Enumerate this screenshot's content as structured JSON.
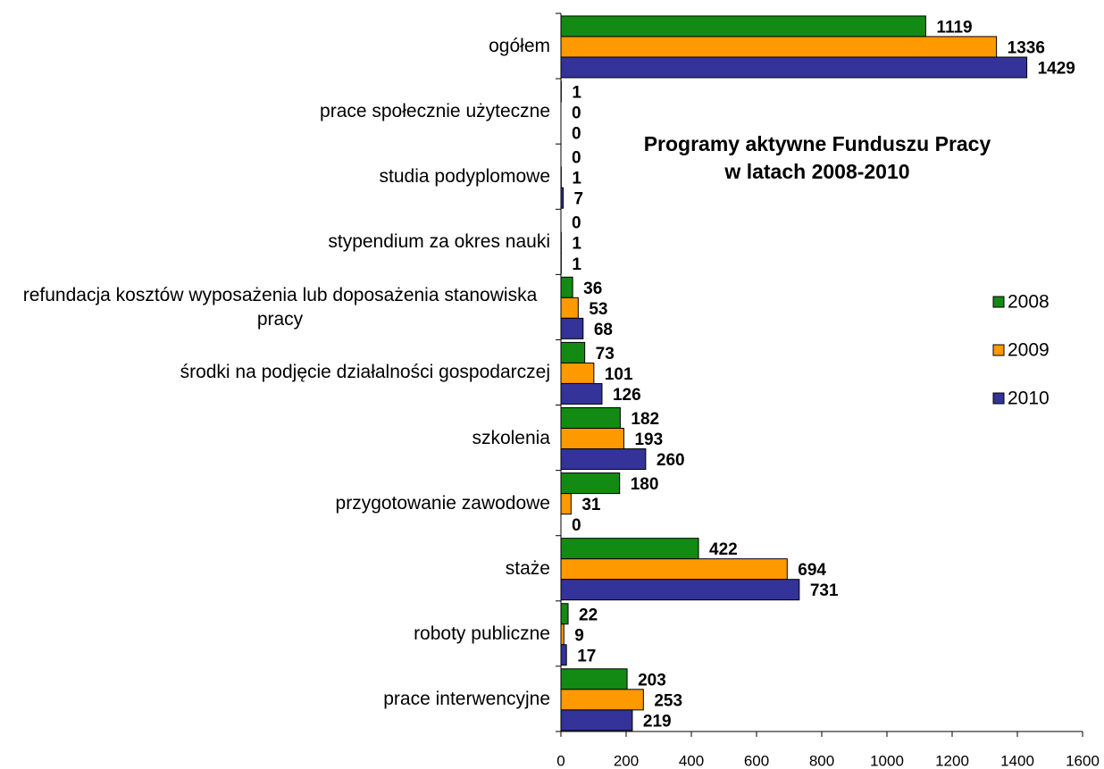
{
  "chart_data": {
    "type": "hbar",
    "title": [
      "Programy aktywne Funduszu Pracy",
      "w latach 2008-2010"
    ],
    "categories": [
      "ogółem",
      "prace społecznie użyteczne",
      "studia podyplomowe",
      "stypendium za okres nauki",
      "refundacja kosztów wyposażenia lub doposażenia stanowiska pracy",
      "środki na podjęcie działalności gospodarczej",
      "szkolenia",
      "przygotowanie zawodowe",
      "staże",
      "roboty publiczne",
      "prace interwencyjne"
    ],
    "series": [
      {
        "name": "2008",
        "color": "#138a13",
        "values": [
          1119,
          1,
          0,
          0,
          36,
          73,
          182,
          180,
          422,
          22,
          203
        ]
      },
      {
        "name": "2009",
        "color": "#ff9900",
        "values": [
          1336,
          0,
          1,
          1,
          53,
          101,
          193,
          31,
          694,
          9,
          253
        ]
      },
      {
        "name": "2010",
        "color": "#333399",
        "values": [
          1429,
          0,
          7,
          1,
          68,
          126,
          260,
          0,
          731,
          17,
          219
        ]
      }
    ],
    "xlim": [
      0,
      1600
    ],
    "xticks": [
      0,
      200,
      400,
      600,
      800,
      1000,
      1200,
      1400,
      1600
    ],
    "legend": "right"
  }
}
